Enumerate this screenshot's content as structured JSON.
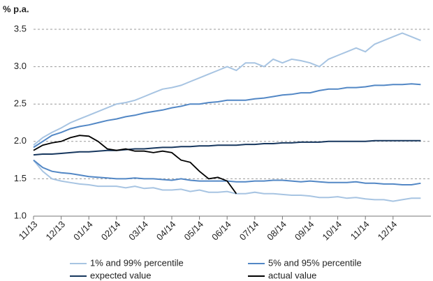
{
  "chart_data": {
    "type": "line",
    "y_label": "% p.a.",
    "categories": [
      "11/13",
      null,
      null,
      "12/13",
      null,
      null,
      "01/14",
      null,
      null,
      "02/14",
      null,
      null,
      "03/14",
      null,
      null,
      "04/14",
      null,
      null,
      "05/14",
      null,
      null,
      "06/14",
      null,
      null,
      "07/14",
      null,
      null,
      "08/14",
      null,
      null,
      "09/14",
      null,
      null,
      "10/14",
      null,
      null,
      "11/14",
      null,
      null,
      "12/14",
      null,
      null,
      null
    ],
    "ylim": [
      1.0,
      3.5
    ],
    "yticks": [
      {
        "value": 1.0,
        "label": "1.0"
      },
      {
        "value": 1.5,
        "label": "1.5"
      },
      {
        "value": 2.0,
        "label": "2.0"
      },
      {
        "value": 2.5,
        "label": "2.5"
      },
      {
        "value": 3.0,
        "label": "3.0"
      },
      {
        "value": 3.5,
        "label": "3.5"
      }
    ],
    "grid": true,
    "series": [
      {
        "name": "1% and 99% percentile",
        "color": "#a7c4e2",
        "values": [
          1.95,
          2.05,
          2.12,
          2.18,
          2.25,
          2.3,
          2.35,
          2.4,
          2.45,
          2.5,
          2.52,
          2.55,
          2.6,
          2.65,
          2.7,
          2.72,
          2.75,
          2.8,
          2.85,
          2.9,
          2.95,
          3.0,
          2.95,
          3.05,
          3.05,
          3.0,
          3.1,
          3.05,
          3.1,
          3.08,
          3.05,
          3.0,
          3.1,
          3.15,
          3.2,
          3.25,
          3.2,
          3.3,
          3.35,
          3.4,
          3.45,
          3.4,
          3.35
        ],
        "lower": [
          1.75,
          1.6,
          1.5,
          1.47,
          1.45,
          1.43,
          1.42,
          1.4,
          1.4,
          1.4,
          1.38,
          1.4,
          1.37,
          1.38,
          1.35,
          1.35,
          1.36,
          1.33,
          1.35,
          1.32,
          1.32,
          1.33,
          1.3,
          1.3,
          1.32,
          1.3,
          1.3,
          1.29,
          1.28,
          1.28,
          1.27,
          1.25,
          1.25,
          1.26,
          1.24,
          1.25,
          1.23,
          1.22,
          1.22,
          1.2,
          1.22,
          1.24,
          1.24
        ]
      },
      {
        "name": "5% and 95% percentile",
        "color": "#5287c5",
        "values": [
          1.92,
          2.0,
          2.08,
          2.12,
          2.17,
          2.2,
          2.22,
          2.25,
          2.28,
          2.3,
          2.33,
          2.35,
          2.38,
          2.4,
          2.42,
          2.45,
          2.47,
          2.5,
          2.5,
          2.52,
          2.53,
          2.55,
          2.55,
          2.55,
          2.57,
          2.58,
          2.6,
          2.62,
          2.63,
          2.65,
          2.65,
          2.68,
          2.7,
          2.7,
          2.72,
          2.72,
          2.73,
          2.75,
          2.75,
          2.76,
          2.76,
          2.77,
          2.76
        ],
        "lower": [
          1.75,
          1.65,
          1.6,
          1.58,
          1.57,
          1.55,
          1.53,
          1.52,
          1.51,
          1.5,
          1.5,
          1.51,
          1.5,
          1.5,
          1.49,
          1.48,
          1.5,
          1.48,
          1.47,
          1.47,
          1.47,
          1.47,
          1.46,
          1.46,
          1.47,
          1.47,
          1.48,
          1.48,
          1.47,
          1.46,
          1.47,
          1.46,
          1.45,
          1.45,
          1.45,
          1.46,
          1.44,
          1.44,
          1.43,
          1.43,
          1.42,
          1.42,
          1.44
        ]
      },
      {
        "name": "expected value",
        "color": "#17375e",
        "values": [
          1.82,
          1.83,
          1.83,
          1.84,
          1.85,
          1.86,
          1.86,
          1.87,
          1.88,
          1.88,
          1.89,
          1.9,
          1.9,
          1.91,
          1.92,
          1.92,
          1.93,
          1.93,
          1.94,
          1.94,
          1.95,
          1.95,
          1.95,
          1.96,
          1.96,
          1.97,
          1.97,
          1.98,
          1.98,
          1.99,
          1.99,
          1.99,
          2.0,
          2.0,
          2.0,
          2.0,
          2.0,
          2.01,
          2.01,
          2.01,
          2.01,
          2.01,
          2.01
        ]
      },
      {
        "name": "actual value",
        "color": "#000000",
        "values": [
          1.88,
          1.95,
          1.98,
          2.0,
          2.05,
          2.08,
          2.07,
          2.0,
          1.9,
          1.88,
          1.9,
          1.87,
          1.87,
          1.85,
          1.87,
          1.85,
          1.75,
          1.72,
          1.6,
          1.5,
          1.52,
          1.47,
          1.3,
          null,
          null,
          null,
          null,
          null,
          null,
          null,
          null,
          null,
          null,
          null,
          null,
          null,
          null,
          null,
          null,
          null,
          null,
          null,
          null
        ]
      }
    ]
  }
}
